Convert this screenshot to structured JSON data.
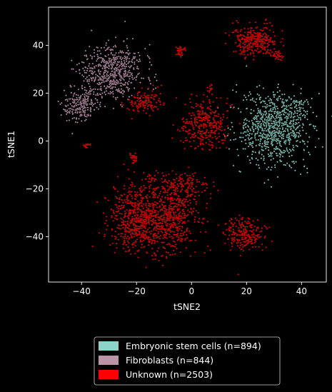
{
  "chart_data": {
    "type": "scatter",
    "xlabel": "tSNE2",
    "ylabel": "tSNE1",
    "xlim": [
      -52,
      49
    ],
    "ylim": [
      -59,
      56
    ],
    "x_ticks": [
      -40,
      -20,
      0,
      20,
      40
    ],
    "y_ticks": [
      -40,
      -20,
      0,
      20,
      40
    ],
    "x_tick_labels": [
      "−40",
      "−20",
      "0",
      "20",
      "40"
    ],
    "y_tick_labels": [
      "−40",
      "−20",
      "0",
      "20",
      "40"
    ],
    "grid": false,
    "legend_position": "below",
    "background": "#000000",
    "series": [
      {
        "name": "Embryonic stem cells (n=894)",
        "color": "#8dd3c7",
        "count": 894,
        "clusters": [
          {
            "cx": 30,
            "cy": 5,
            "sx": 6.5,
            "sy": 7.5,
            "n": 860
          },
          {
            "cx": 38,
            "cy": 16,
            "sx": 2.5,
            "sy": 2,
            "n": 34
          }
        ]
      },
      {
        "name": "Fibroblasts (n=844)",
        "color": "#bc94a8",
        "count": 844,
        "clusters": [
          {
            "cx": -29,
            "cy": 29,
            "sx": 5.5,
            "sy": 5.5,
            "n": 620
          },
          {
            "cx": -40,
            "cy": 15,
            "sx": 3,
            "sy": 3.5,
            "n": 224
          }
        ]
      },
      {
        "name": "Unknown (n=2503)",
        "color": "#ff0000",
        "count": 2503,
        "clusters": [
          {
            "cx": -19,
            "cy": -32,
            "sx": 5.5,
            "sy": 7,
            "n": 700
          },
          {
            "cx": -7,
            "cy": -33,
            "sx": 5,
            "sy": 7,
            "n": 430
          },
          {
            "cx": -3,
            "cy": -19,
            "sx": 4.5,
            "sy": 3,
            "n": 170
          },
          {
            "cx": 19,
            "cy": -39,
            "sx": 3.5,
            "sy": 3.5,
            "n": 240
          },
          {
            "cx": 5,
            "cy": 7,
            "sx": 4,
            "sy": 5,
            "n": 340
          },
          {
            "cx": 23,
            "cy": 42,
            "sx": 4,
            "sy": 3,
            "n": 330
          },
          {
            "cx": -17,
            "cy": 16,
            "sx": 3,
            "sy": 2.5,
            "n": 140
          },
          {
            "cx": 31,
            "cy": 36,
            "sx": 1.2,
            "sy": 1,
            "n": 40
          },
          {
            "cx": -4,
            "cy": 38,
            "sx": 0.9,
            "sy": 1,
            "n": 40
          },
          {
            "cx": -21,
            "cy": -7,
            "sx": 0.8,
            "sy": 1.2,
            "n": 30
          },
          {
            "cx": -38,
            "cy": -2,
            "sx": 0.8,
            "sy": 0.6,
            "n": 15
          },
          {
            "cx": 7,
            "cy": 22,
            "sx": 0.6,
            "sy": 0.8,
            "n": 13
          },
          {
            "cx": -15,
            "cy": -15,
            "sx": 1,
            "sy": 1,
            "n": 15
          }
        ]
      }
    ]
  }
}
